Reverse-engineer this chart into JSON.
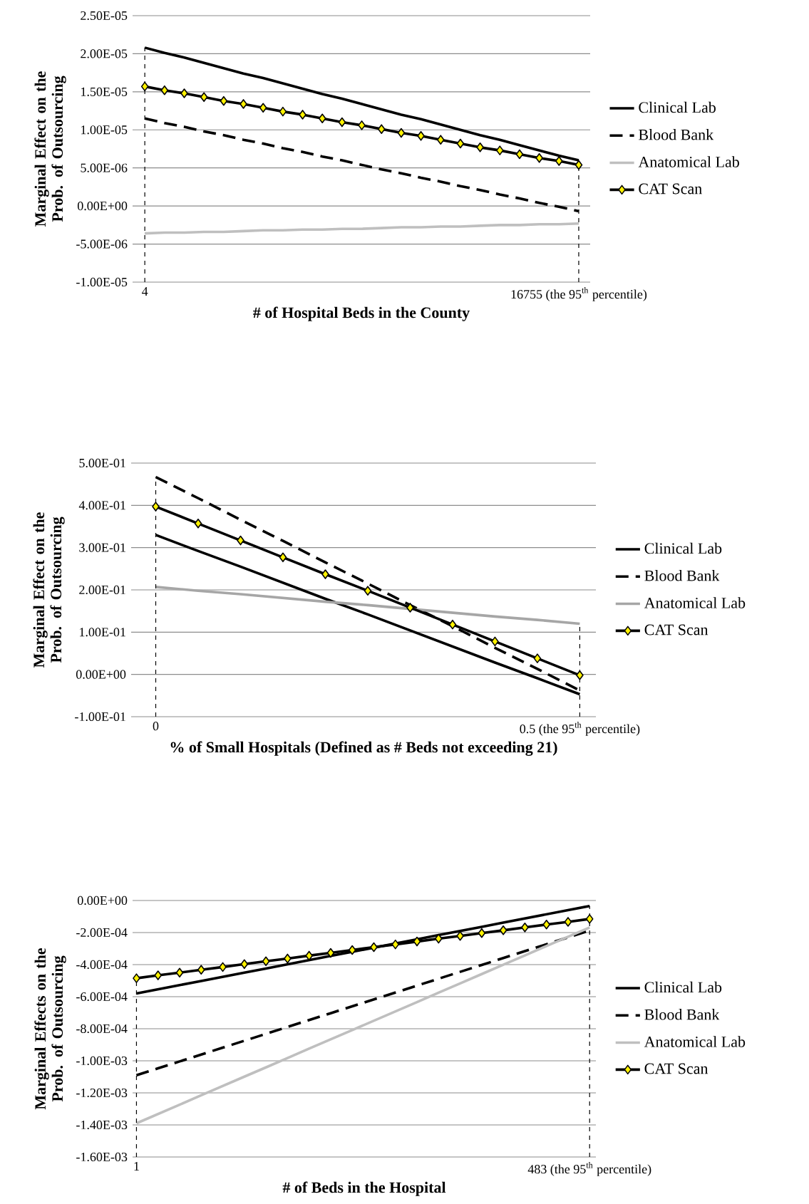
{
  "chart_data": [
    {
      "type": "line",
      "xlabel": "# of Hospital Beds in the County",
      "ylabel": "Marginal Effect on the Prob. of Outsourcing",
      "categories": [
        "4",
        null,
        null,
        null,
        null,
        null,
        null,
        null,
        null,
        null,
        null,
        null,
        null,
        null,
        null,
        null,
        null,
        null,
        null,
        null,
        null,
        null,
        "16755 (the 95$^{th}$ percentile)"
      ],
      "ylim": [
        -1e-05,
        2.5e-05
      ],
      "yticks": [
        {
          "value": 2.5e-05,
          "label": "2.50E-05"
        },
        {
          "value": 2e-05,
          "label": "2.00E-05"
        },
        {
          "value": 1.5e-05,
          "label": "1.50E-05"
        },
        {
          "value": 1e-05,
          "label": "1.00E-05"
        },
        {
          "value": 5e-06,
          "label": "5.00E-06"
        },
        {
          "value": 0,
          "label": "0.00E+00"
        },
        {
          "value": -5e-06,
          "label": "-5.00E-06"
        },
        {
          "value": -1e-05,
          "label": "-1.00E-05"
        }
      ],
      "grid": "y",
      "legend": "right",
      "ref_lines": [
        {
          "axis": "x",
          "value": "4",
          "line_style": "dashed"
        },
        {
          "axis": "x",
          "value": "16755 (the 95$^{th}$ percentile)",
          "line_style": "dashed"
        }
      ],
      "series": [
        {
          "name": "Clinical Lab",
          "color": "#000000",
          "line_style": "solid",
          "values": [
            2.08e-05,
            2.01e-05,
            1.95e-05,
            1.88e-05,
            1.81e-05,
            1.74e-05,
            1.68e-05,
            1.61e-05,
            1.54e-05,
            1.47e-05,
            1.41e-05,
            1.34e-05,
            1.27e-05,
            1.2e-05,
            1.14e-05,
            1.07e-05,
            1e-05,
            9.3e-06,
            8.7e-06,
            8e-06,
            7.3e-06,
            6.6e-06,
            6e-06
          ]
        },
        {
          "name": "Blood Bank",
          "color": "#000000",
          "line_style": "dashed",
          "values": [
            1.15e-05,
            1.09e-05,
            1.04e-05,
            9.8e-06,
            9.3e-06,
            8.7e-06,
            8.2e-06,
            7.6e-06,
            7.1e-06,
            6.5e-06,
            6e-06,
            5.4e-06,
            4.8e-06,
            4.3e-06,
            3.7e-06,
            3.2e-06,
            2.6e-06,
            2.1e-06,
            1.5e-06,
            1e-06,
            4e-07,
            -1e-07,
            -7e-07
          ]
        },
        {
          "name": "Anatomical Lab",
          "color": "#bfbfbf",
          "line_style": "solid",
          "values": [
            -3.6e-06,
            -3.5e-06,
            -3.5e-06,
            -3.4e-06,
            -3.4e-06,
            -3.3e-06,
            -3.2e-06,
            -3.2e-06,
            -3.1e-06,
            -3.1e-06,
            -3e-06,
            -3e-06,
            -2.9e-06,
            -2.8e-06,
            -2.8e-06,
            -2.7e-06,
            -2.7e-06,
            -2.6e-06,
            -2.5e-06,
            -2.5e-06,
            -2.4e-06,
            -2.4e-06,
            -2.3e-06
          ]
        },
        {
          "name": "CAT Scan",
          "color": "#000000",
          "line_style": "solid",
          "marker": "diamond",
          "values": [
            1.57e-05,
            1.52e-05,
            1.48e-05,
            1.43e-05,
            1.38e-05,
            1.34e-05,
            1.29e-05,
            1.24e-05,
            1.2e-05,
            1.15e-05,
            1.1e-05,
            1.06e-05,
            1.01e-05,
            9.6e-06,
            9.2e-06,
            8.7e-06,
            8.2e-06,
            7.7e-06,
            7.3e-06,
            6.8e-06,
            6.3e-06,
            5.9e-06,
            5.4e-06
          ]
        }
      ]
    },
    {
      "type": "line",
      "xlabel": "% of Small Hospitals (Defined as # Beds not exceeding 21)",
      "ylabel": "Marginal Effect on the Prob. of Outsourcing",
      "categories": [
        "0",
        null,
        null,
        null,
        null,
        null,
        null,
        null,
        null,
        null,
        "0.5 (the 95$^{th}$ percentile)"
      ],
      "ylim": [
        -0.1,
        0.5
      ],
      "yticks": [
        {
          "value": 0.5,
          "label": "5.00E-01"
        },
        {
          "value": 0.4,
          "label": "4.00E-01"
        },
        {
          "value": 0.3,
          "label": "3.00E-01"
        },
        {
          "value": 0.2,
          "label": "2.00E-01"
        },
        {
          "value": 0.1,
          "label": "1.00E-01"
        },
        {
          "value": 0,
          "label": "0.00E+00"
        },
        {
          "value": -0.1,
          "label": "-1.00E-01"
        }
      ],
      "grid": "y",
      "legend": "right",
      "ref_lines": [
        {
          "axis": "x",
          "value": "0",
          "line_style": "dashed"
        },
        {
          "axis": "x",
          "value": "0.5 (the 95$^{th}$ percentile)",
          "line_style": "dashed"
        }
      ],
      "series": [
        {
          "name": "Clinical Lab",
          "color": "#000000",
          "line_style": "solid",
          "values": [
            0.33,
            0.292,
            0.255,
            0.217,
            0.179,
            0.142,
            0.104,
            0.066,
            0.028,
            -0.009,
            -0.047
          ]
        },
        {
          "name": "Blood Bank",
          "color": "#000000",
          "line_style": "dashed",
          "values": [
            0.467,
            0.417,
            0.366,
            0.316,
            0.265,
            0.215,
            0.164,
            0.114,
            0.063,
            0.013,
            -0.038
          ]
        },
        {
          "name": "Anatomical Lab",
          "color": "#a6a6a6",
          "line_style": "solid",
          "values": [
            0.207,
            0.198,
            0.19,
            0.181,
            0.172,
            0.164,
            0.155,
            0.146,
            0.137,
            0.129,
            0.12
          ]
        },
        {
          "name": "CAT Scan",
          "color": "#000000",
          "line_style": "solid",
          "marker": "diamond",
          "values": [
            0.397,
            0.357,
            0.317,
            0.277,
            0.237,
            0.198,
            0.158,
            0.118,
            0.078,
            0.038,
            -0.002
          ]
        }
      ]
    },
    {
      "type": "line",
      "xlabel": "# of Beds in the Hospital",
      "ylabel": "Marginal Effects on the Prob. of Outsourcing",
      "categories": [
        "1",
        null,
        null,
        null,
        null,
        null,
        null,
        null,
        null,
        null,
        null,
        null,
        null,
        null,
        null,
        null,
        null,
        null,
        null,
        null,
        null,
        "483 (the 95$^{th}$ percentile)"
      ],
      "ylim": [
        -0.0016,
        0
      ],
      "yticks": [
        {
          "value": 0,
          "label": "0.00E+00"
        },
        {
          "value": -0.0002,
          "label": "-2.00E-04"
        },
        {
          "value": -0.0004,
          "label": "-4.00E-04"
        },
        {
          "value": -0.0006,
          "label": "-6.00E-04"
        },
        {
          "value": -0.0008,
          "label": "-8.00E-04"
        },
        {
          "value": -0.001,
          "label": "-1.00E-03"
        },
        {
          "value": -0.0012,
          "label": "-1.20E-03"
        },
        {
          "value": -0.0014,
          "label": "-1.40E-03"
        },
        {
          "value": -0.0016,
          "label": "-1.60E-03"
        }
      ],
      "grid": "y",
      "legend": "right",
      "ref_lines": [
        {
          "axis": "x",
          "value": "1",
          "line_style": "dashed"
        },
        {
          "axis": "x",
          "value": "483 (the 95$^{th}$ percentile)",
          "line_style": "dashed"
        }
      ],
      "series": [
        {
          "name": "Clinical Lab",
          "color": "#000000",
          "line_style": "solid",
          "values": [
            -0.00058,
            -0.000554,
            -0.000528,
            -0.000502,
            -0.000476,
            -0.00045,
            -0.000424,
            -0.000398,
            -0.000372,
            -0.000346,
            -0.00032,
            -0.000294,
            -0.000268,
            -0.000242,
            -0.000216,
            -0.00019,
            -0.000164,
            -0.000138,
            -0.000112,
            -8.6e-05,
            -6e-05,
            -3.4e-05
          ]
        },
        {
          "name": "Blood Bank",
          "color": "#000000",
          "line_style": "dashed",
          "values": [
            -0.00109,
            -0.001047,
            -0.001004,
            -0.000961,
            -0.000918,
            -0.000875,
            -0.000832,
            -0.000789,
            -0.000746,
            -0.000703,
            -0.00066,
            -0.000617,
            -0.000574,
            -0.000531,
            -0.000488,
            -0.000445,
            -0.000402,
            -0.000359,
            -0.000316,
            -0.000273,
            -0.00023,
            -0.000187
          ]
        },
        {
          "name": "Anatomical Lab",
          "color": "#bfbfbf",
          "line_style": "solid",
          "values": [
            -0.00139,
            -0.001332,
            -0.001274,
            -0.001215,
            -0.001157,
            -0.001099,
            -0.001041,
            -0.000983,
            -0.000924,
            -0.000866,
            -0.000808,
            -0.00075,
            -0.000692,
            -0.000634,
            -0.000575,
            -0.000517,
            -0.000459,
            -0.000401,
            -0.000343,
            -0.000284,
            -0.000226,
            -0.000168
          ]
        },
        {
          "name": "CAT Scan",
          "color": "#000000",
          "line_style": "solid",
          "marker": "diamond",
          "values": [
            -0.000485,
            -0.000467,
            -0.00045,
            -0.000432,
            -0.000415,
            -0.000397,
            -0.000379,
            -0.000362,
            -0.000344,
            -0.000327,
            -0.000309,
            -0.000291,
            -0.000274,
            -0.000256,
            -0.000238,
            -0.000221,
            -0.000203,
            -0.000186,
            -0.000168,
            -0.00015,
            -0.000133,
            -0.000115
          ]
        }
      ]
    }
  ]
}
